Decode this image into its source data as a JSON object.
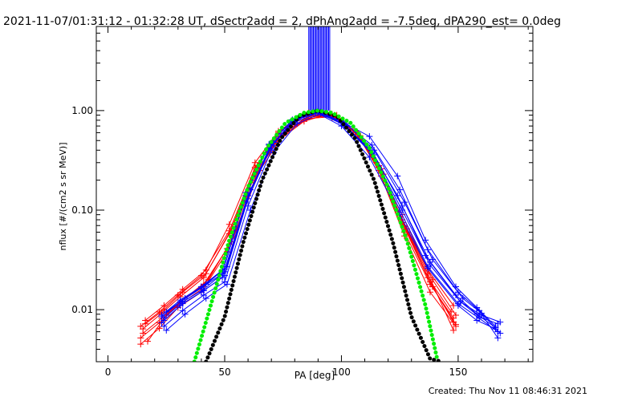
{
  "title": "2021-11-07/01:31:12 - 01:32:28 UT, dSectr2add = 2, dPhAng2add = -7.5deg, dPA290_est=  0.0deg",
  "created": "Created: Thu Nov 11 08:46:31 2021",
  "colors": {
    "red": "#ff0000",
    "blue": "#0000ff",
    "green": "#00ee00",
    "black": "#000000",
    "axes": "#000000"
  },
  "chart_data": {
    "type": "line",
    "xlabel": "PA [deg]",
    "ylabel": "nflux [#/(cm2 s sr MeV)]",
    "xlim": [
      -5,
      182
    ],
    "ylim": [
      0.003,
      7
    ],
    "yscale": "log",
    "xticks": [
      0,
      50,
      100,
      150
    ],
    "xtick_labels": [
      "0",
      "50",
      "100",
      "150"
    ],
    "yticks": [
      0.01,
      0.1,
      1.0
    ],
    "ytick_labels": [
      "0.01",
      "0.10",
      "1.00"
    ],
    "grid": false,
    "legend": "none",
    "series": [
      {
        "color": "red",
        "x": [
          14,
          22,
          30,
          40,
          52,
          63,
          73,
          85,
          97,
          107,
          116,
          126,
          137,
          147
        ],
        "y": [
          0.0068,
          0.0095,
          0.014,
          0.022,
          0.062,
          0.27,
          0.55,
          0.83,
          0.87,
          0.58,
          0.27,
          0.075,
          0.021,
          0.0095
        ]
      },
      {
        "color": "red",
        "x": [
          15,
          23,
          31,
          41,
          53,
          64,
          74,
          86,
          98,
          108,
          117,
          127,
          138,
          148
        ],
        "y": [
          0.0058,
          0.0082,
          0.012,
          0.018,
          0.048,
          0.24,
          0.58,
          0.88,
          0.9,
          0.55,
          0.22,
          0.06,
          0.018,
          0.0082
        ]
      },
      {
        "color": "red",
        "x": [
          16,
          24,
          32,
          42,
          52,
          63,
          73,
          84,
          96,
          106,
          115,
          126,
          137,
          148
        ],
        "y": [
          0.0078,
          0.011,
          0.016,
          0.025,
          0.072,
          0.3,
          0.62,
          0.92,
          0.85,
          0.6,
          0.3,
          0.09,
          0.025,
          0.011
        ]
      },
      {
        "color": "red",
        "x": [
          14,
          22,
          30,
          40,
          51,
          62,
          72,
          84,
          96,
          106,
          116,
          127,
          138,
          149
        ],
        "y": [
          0.0052,
          0.0074,
          0.011,
          0.016,
          0.041,
          0.21,
          0.5,
          0.8,
          0.92,
          0.62,
          0.25,
          0.055,
          0.015,
          0.0068
        ]
      },
      {
        "color": "red",
        "x": [
          17,
          25,
          33,
          43,
          54,
          65,
          75,
          86,
          97,
          107,
          117,
          128,
          139,
          149
        ],
        "y": [
          0.0048,
          0.0088,
          0.013,
          0.02,
          0.055,
          0.25,
          0.56,
          0.86,
          0.88,
          0.57,
          0.24,
          0.065,
          0.02,
          0.0088
        ]
      },
      {
        "color": "red",
        "x": [
          15,
          23,
          31,
          41,
          52,
          63,
          73,
          85,
          97,
          107,
          117,
          127,
          138,
          148
        ],
        "y": [
          0.0064,
          0.0092,
          0.0135,
          0.021,
          0.058,
          0.26,
          0.6,
          0.9,
          0.9,
          0.59,
          0.26,
          0.07,
          0.019,
          0.0075
        ]
      },
      {
        "color": "red",
        "x": [
          16,
          24,
          32,
          42,
          53,
          64,
          74,
          86,
          98,
          108,
          118,
          128,
          139,
          149
        ],
        "y": [
          0.0072,
          0.01,
          0.015,
          0.023,
          0.065,
          0.28,
          0.63,
          0.95,
          0.85,
          0.56,
          0.23,
          0.06,
          0.017,
          0.0071
        ]
      },
      {
        "color": "red",
        "x": [
          14,
          22,
          30,
          40,
          51,
          62,
          72,
          84,
          95,
          105,
          116,
          126,
          137,
          148
        ],
        "y": [
          0.0045,
          0.0065,
          0.0105,
          0.015,
          0.038,
          0.2,
          0.48,
          0.78,
          0.93,
          0.64,
          0.28,
          0.08,
          0.023,
          0.0062
        ]
      },
      {
        "color": "blue",
        "x": [
          24,
          32,
          41,
          50,
          60,
          70,
          80,
          90,
          101,
          113,
          126,
          138,
          151,
          159,
          167
        ],
        "y": [
          0.0082,
          0.012,
          0.016,
          0.024,
          0.14,
          0.45,
          0.8,
          0.98,
          0.72,
          0.37,
          0.1,
          0.028,
          0.012,
          0.0085,
          0.0072
        ]
      },
      {
        "color": "blue",
        "x": [
          23,
          31,
          40,
          49,
          59,
          69,
          79,
          89,
          100,
          112,
          125,
          137,
          150,
          158,
          166
        ],
        "y": [
          0.0074,
          0.011,
          0.015,
          0.021,
          0.12,
          0.42,
          0.78,
          0.96,
          0.7,
          0.34,
          0.09,
          0.026,
          0.011,
          0.0078,
          0.0064
        ]
      },
      {
        "color": "blue",
        "x": [
          25,
          33,
          42,
          51,
          61,
          71,
          81,
          91,
          102,
          114,
          127,
          139,
          152,
          160,
          168
        ],
        "y": [
          0.0095,
          0.013,
          0.018,
          0.027,
          0.16,
          0.48,
          0.82,
          0.97,
          0.74,
          0.4,
          0.12,
          0.032,
          0.013,
          0.0092,
          0.0058
        ]
      },
      {
        "color": "blue",
        "x": [
          24,
          32,
          41,
          50,
          60,
          70,
          80,
          90,
          101,
          113,
          125,
          137,
          150,
          159,
          167
        ],
        "y": [
          0.0068,
          0.0098,
          0.014,
          0.019,
          0.11,
          0.4,
          0.76,
          0.95,
          0.76,
          0.45,
          0.16,
          0.04,
          0.015,
          0.0098,
          0.0052
        ]
      },
      {
        "color": "blue",
        "x": [
          23,
          31,
          40,
          49,
          59,
          69,
          79,
          89,
          100,
          112,
          124,
          136,
          149,
          158,
          166
        ],
        "y": [
          0.0088,
          0.0125,
          0.017,
          0.025,
          0.15,
          0.46,
          0.81,
          0.99,
          0.78,
          0.55,
          0.22,
          0.05,
          0.017,
          0.0105,
          0.0068
        ]
      },
      {
        "color": "blue",
        "x": [
          25,
          33,
          42,
          51,
          61,
          71,
          81,
          91,
          102,
          114,
          126,
          138,
          151,
          160,
          168
        ],
        "y": [
          0.0062,
          0.009,
          0.013,
          0.018,
          0.1,
          0.38,
          0.74,
          0.93,
          0.7,
          0.36,
          0.11,
          0.03,
          0.012,
          0.0088,
          0.0075
        ]
      },
      {
        "color": "blue",
        "x": [
          24,
          32,
          41,
          50,
          60,
          70,
          80,
          90,
          101,
          113,
          125,
          137,
          150,
          159,
          167
        ],
        "y": [
          0.0078,
          0.0115,
          0.0155,
          0.022,
          0.13,
          0.44,
          0.79,
          0.97,
          0.73,
          0.38,
          0.1,
          0.027,
          0.0115,
          0.0082,
          0.006
        ]
      },
      {
        "color": "blue",
        "x": [
          23,
          31,
          40,
          49,
          59,
          69,
          79,
          89,
          100,
          112,
          124,
          136,
          149,
          158,
          166
        ],
        "y": [
          0.0085,
          0.012,
          0.0165,
          0.023,
          0.14,
          0.45,
          0.8,
          0.96,
          0.75,
          0.42,
          0.14,
          0.035,
          0.014,
          0.009,
          0.0066
        ]
      }
    ],
    "blue_spike_x": [
      86,
      95
    ],
    "model_curves": [
      {
        "color": "black",
        "x": [
          42,
          50,
          58,
          66,
          74,
          82,
          90,
          98,
          106,
          114,
          122,
          130,
          138,
          143
        ],
        "y": [
          0.003,
          0.0085,
          0.048,
          0.2,
          0.52,
          0.88,
          1.0,
          0.88,
          0.52,
          0.2,
          0.048,
          0.0085,
          0.0032,
          0.003
        ]
      },
      {
        "color": "green",
        "x": [
          37,
          44,
          52,
          60,
          68,
          76,
          84,
          90,
          96,
          104,
          112,
          120,
          128,
          136,
          141
        ],
        "y": [
          0.003,
          0.011,
          0.05,
          0.17,
          0.42,
          0.75,
          0.95,
          1.0,
          0.95,
          0.75,
          0.42,
          0.17,
          0.05,
          0.011,
          0.0032
        ]
      }
    ]
  }
}
